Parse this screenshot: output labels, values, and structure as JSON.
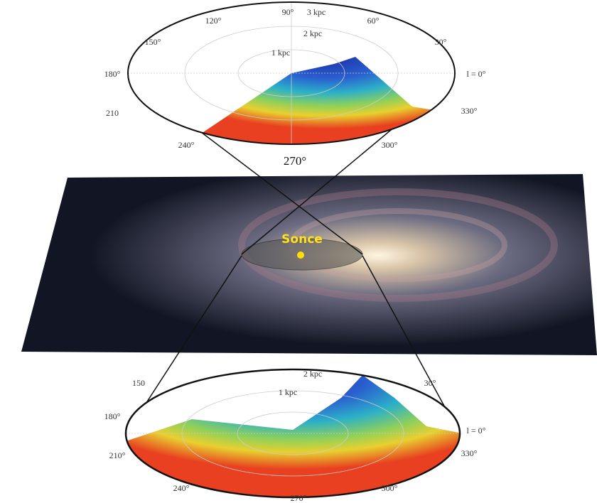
{
  "top_plot": {
    "labels": [
      "90°",
      "3 kpc",
      "60°",
      "120°",
      "150°",
      "2 kpc",
      "30°",
      "1 kpc",
      "180°",
      "l = 0°",
      "210",
      "330°",
      "240°",
      "300°",
      "270°"
    ]
  },
  "galaxy": {
    "label": "Sonce"
  },
  "bottom_plot": {
    "labels": [
      "2 kpc",
      "150",
      "30°",
      "1 kpc",
      "180°",
      "l = 0°",
      "210°",
      "330°",
      "240°",
      "300°",
      "270°"
    ]
  }
}
